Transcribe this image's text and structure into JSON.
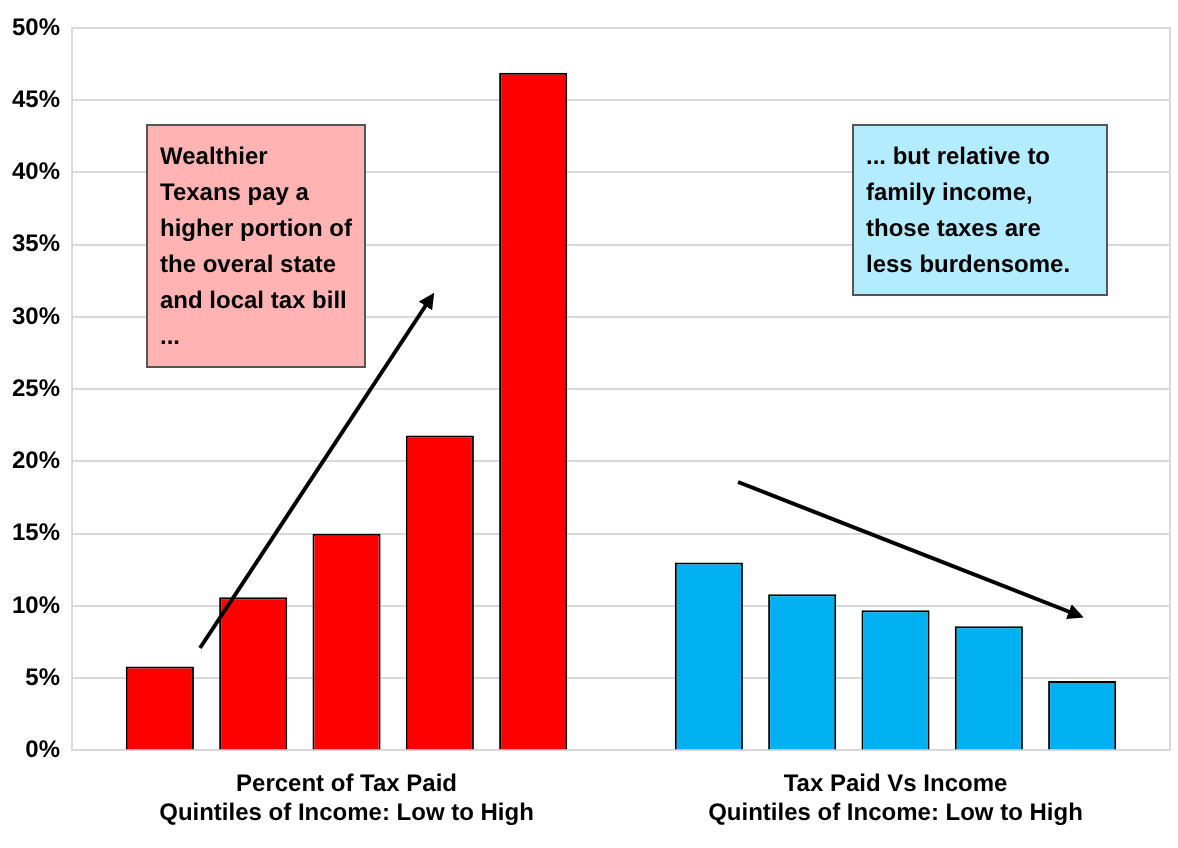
{
  "chart_data": {
    "type": "bar",
    "categories": [
      "Percent of Tax Paid\nQuintiles of Income: Low to High",
      "Tax Paid Vs Income\nQuintiles of Income: Low to High"
    ],
    "series": [
      {
        "colors": [
          "#ff0000",
          "#00b0f0"
        ],
        "values": [
          5.8,
          13.0
        ]
      },
      {
        "colors": [
          "#ff0000",
          "#00b0f0"
        ],
        "values": [
          10.6,
          10.8
        ]
      },
      {
        "colors": [
          "#ff0000",
          "#00b0f0"
        ],
        "values": [
          15.0,
          9.7
        ]
      },
      {
        "colors": [
          "#ff0000",
          "#00b0f0"
        ],
        "values": [
          21.8,
          8.6
        ]
      },
      {
        "colors": [
          "#ff0000",
          "#00b0f0"
        ],
        "values": [
          46.9,
          4.8
        ]
      }
    ],
    "ylim": [
      0,
      50
    ],
    "yticks": [
      {
        "value": 0,
        "label": "0%"
      },
      {
        "value": 5,
        "label": "5%"
      },
      {
        "value": 10,
        "label": "10%"
      },
      {
        "value": 15,
        "label": "15%"
      },
      {
        "value": 20,
        "label": "20%"
      },
      {
        "value": 25,
        "label": "25%"
      },
      {
        "value": 30,
        "label": "30%"
      },
      {
        "value": 35,
        "label": "35%"
      },
      {
        "value": 40,
        "label": "40%"
      },
      {
        "value": 45,
        "label": "45%"
      },
      {
        "value": 50,
        "label": "50%"
      }
    ],
    "grid": "y",
    "legend": false,
    "annotations": [
      "Wealthier Texans pay a higher portion of the overal state and local tax bill ...",
      "... but relative to family income, those taxes are less burdensome."
    ]
  }
}
